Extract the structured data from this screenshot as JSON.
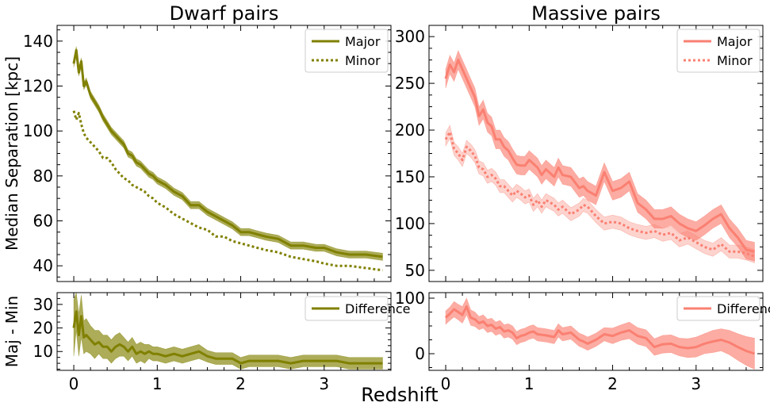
{
  "figure": {
    "xlabel": "Redshift"
  },
  "colors": {
    "dwarf": "#808000",
    "massive": "#fa8072"
  },
  "chart_data": [
    {
      "type": "line",
      "title": "Dwarf pairs",
      "ylabel": "Median Separation [kpc]",
      "xlabel": "",
      "xlim": [
        -0.2,
        3.8
      ],
      "ylim": [
        33,
        147
      ],
      "xticks": [
        0,
        1,
        2,
        3
      ],
      "yticks": [
        40,
        60,
        80,
        100,
        120,
        140
      ],
      "legend": "top-right",
      "grid": false,
      "series": [
        {
          "name": "Major",
          "style": "solid",
          "x": [
            0.0,
            0.03,
            0.06,
            0.09,
            0.12,
            0.15,
            0.2,
            0.25,
            0.3,
            0.35,
            0.4,
            0.45,
            0.5,
            0.55,
            0.6,
            0.65,
            0.7,
            0.75,
            0.8,
            0.85,
            0.9,
            0.95,
            1.0,
            1.1,
            1.2,
            1.3,
            1.4,
            1.5,
            1.6,
            1.7,
            1.8,
            1.9,
            2.0,
            2.1,
            2.2,
            2.3,
            2.45,
            2.6,
            2.75,
            2.9,
            3.0,
            3.15,
            3.3,
            3.5,
            3.7
          ],
          "y": [
            130,
            136,
            126,
            131,
            120,
            122,
            116,
            113,
            110,
            106,
            103,
            100,
            98,
            96,
            94,
            90,
            89,
            86,
            85,
            83,
            81,
            80,
            78,
            76,
            73,
            71,
            67,
            67,
            64,
            62,
            60,
            58,
            55,
            55,
            54,
            53,
            52,
            49,
            49,
            48,
            48,
            46,
            45,
            45,
            44
          ],
          "band": 1.6
        },
        {
          "name": "Minor",
          "style": "dotted",
          "x": [
            0.0,
            0.03,
            0.06,
            0.09,
            0.12,
            0.15,
            0.2,
            0.25,
            0.3,
            0.35,
            0.4,
            0.45,
            0.5,
            0.55,
            0.6,
            0.65,
            0.7,
            0.75,
            0.8,
            0.85,
            0.9,
            0.95,
            1.0,
            1.1,
            1.2,
            1.3,
            1.4,
            1.5,
            1.6,
            1.7,
            1.8,
            1.9,
            2.0,
            2.1,
            2.2,
            2.3,
            2.45,
            2.6,
            2.75,
            2.9,
            3.0,
            3.15,
            3.3,
            3.5,
            3.7
          ],
          "y": [
            109,
            105,
            108,
            103,
            99,
            97,
            95,
            93,
            91,
            88,
            88,
            86,
            83,
            81,
            79,
            78,
            76,
            75,
            74,
            73,
            71,
            70,
            68,
            66,
            63,
            61,
            59,
            57,
            56,
            53,
            53,
            51,
            50,
            49,
            48,
            47,
            46,
            44,
            43,
            42,
            41,
            40,
            40,
            39,
            38
          ]
        }
      ]
    },
    {
      "type": "line",
      "title": "Massive pairs",
      "xlabel": "",
      "ylabel": "",
      "xlim": [
        -0.2,
        3.8
      ],
      "ylim": [
        38,
        312
      ],
      "xticks": [
        0,
        1,
        2,
        3
      ],
      "yticks": [
        50,
        100,
        150,
        200,
        250,
        300
      ],
      "legend": "top-right",
      "grid": false,
      "series": [
        {
          "name": "Major",
          "style": "solid",
          "x": [
            0.0,
            0.05,
            0.1,
            0.15,
            0.2,
            0.25,
            0.3,
            0.35,
            0.4,
            0.45,
            0.5,
            0.55,
            0.6,
            0.65,
            0.7,
            0.75,
            0.8,
            0.85,
            0.9,
            0.95,
            1.0,
            1.05,
            1.1,
            1.15,
            1.2,
            1.3,
            1.35,
            1.4,
            1.5,
            1.6,
            1.65,
            1.7,
            1.8,
            1.9,
            2.0,
            2.1,
            2.2,
            2.3,
            2.4,
            2.5,
            2.6,
            2.7,
            2.8,
            2.9,
            3.0,
            3.1,
            3.2,
            3.3,
            3.4,
            3.5,
            3.6,
            3.7
          ],
          "y": [
            255,
            270,
            262,
            275,
            265,
            255,
            245,
            235,
            215,
            222,
            208,
            204,
            190,
            190,
            182,
            178,
            170,
            163,
            162,
            162,
            168,
            164,
            160,
            152,
            158,
            150,
            160,
            152,
            150,
            138,
            140,
            135,
            130,
            155,
            135,
            138,
            145,
            122,
            115,
            105,
            105,
            108,
            100,
            95,
            92,
            98,
            105,
            110,
            95,
            85,
            72,
            70
          ],
          "band": 10
        },
        {
          "name": "Minor",
          "style": "dotted",
          "x": [
            0.0,
            0.05,
            0.1,
            0.15,
            0.2,
            0.25,
            0.3,
            0.35,
            0.4,
            0.45,
            0.5,
            0.55,
            0.6,
            0.65,
            0.7,
            0.75,
            0.8,
            0.85,
            0.9,
            0.95,
            1.0,
            1.05,
            1.1,
            1.15,
            1.2,
            1.3,
            1.35,
            1.4,
            1.5,
            1.6,
            1.65,
            1.7,
            1.8,
            1.9,
            2.0,
            2.1,
            2.2,
            2.3,
            2.4,
            2.5,
            2.6,
            2.7,
            2.8,
            2.9,
            3.0,
            3.1,
            3.2,
            3.3,
            3.4,
            3.5,
            3.6,
            3.7
          ],
          "y": [
            190,
            198,
            180,
            175,
            168,
            182,
            178,
            172,
            160,
            158,
            150,
            152,
            148,
            140,
            140,
            135,
            130,
            135,
            132,
            128,
            130,
            120,
            125,
            118,
            125,
            120,
            115,
            118,
            110,
            115,
            120,
            118,
            108,
            100,
            102,
            100,
            95,
            92,
            90,
            92,
            88,
            90,
            82,
            85,
            80,
            75,
            72,
            78,
            70,
            70,
            68,
            65
          ],
          "band": 7
        }
      ]
    },
    {
      "type": "line",
      "title": "",
      "ylabel": "Maj - Min",
      "xlabel": "",
      "xlim": [
        -0.2,
        3.8
      ],
      "ylim": [
        2,
        35
      ],
      "xticks": [
        0,
        1,
        2,
        3
      ],
      "xticklabels": [
        "0",
        "1",
        "2",
        "3"
      ],
      "yticks": [
        10,
        20,
        30
      ],
      "legend": "top-right",
      "series": [
        {
          "name": "Difference",
          "style": "solid",
          "x": [
            0.0,
            0.03,
            0.06,
            0.09,
            0.12,
            0.15,
            0.2,
            0.25,
            0.3,
            0.35,
            0.4,
            0.45,
            0.5,
            0.55,
            0.6,
            0.65,
            0.7,
            0.75,
            0.8,
            0.85,
            0.9,
            0.95,
            1.0,
            1.1,
            1.2,
            1.3,
            1.4,
            1.5,
            1.6,
            1.7,
            1.8,
            1.9,
            2.0,
            2.1,
            2.2,
            2.3,
            2.45,
            2.6,
            2.75,
            2.9,
            3.0,
            3.15,
            3.3,
            3.5,
            3.7
          ],
          "y": [
            20,
            27,
            17,
            25,
            16,
            17,
            15,
            13,
            14,
            12,
            12,
            10,
            12,
            13,
            12,
            10,
            12,
            9,
            10,
            9,
            10,
            9,
            9,
            8,
            9,
            8,
            9,
            10,
            8,
            7,
            7,
            7,
            5,
            6,
            6,
            6,
            6,
            5,
            6,
            6,
            6,
            6,
            5,
            5,
            5
          ],
          "band": [
            12,
            8,
            9,
            9,
            7,
            7,
            6,
            6,
            5,
            5,
            5,
            5,
            5,
            5,
            4,
            4,
            4,
            4,
            4,
            4,
            3,
            3,
            3,
            3,
            3,
            3,
            3,
            3,
            2.5,
            2.5,
            2.5,
            2.5,
            2.5,
            2.5,
            2.5,
            2.5,
            2.5,
            2.5,
            2.5,
            2.5,
            2.5,
            2.5,
            2.5,
            2.5,
            2.5
          ]
        }
      ]
    },
    {
      "type": "line",
      "title": "",
      "xlabel": "",
      "ylabel": "",
      "xlim": [
        -0.2,
        3.8
      ],
      "ylim": [
        -30,
        110
      ],
      "xticks": [
        0,
        1,
        2,
        3
      ],
      "xticklabels": [
        "0",
        "1",
        "2",
        "3"
      ],
      "yticks": [
        0,
        100
      ],
      "legend": "top-right",
      "series": [
        {
          "name": "Difference",
          "style": "solid",
          "x": [
            0.0,
            0.05,
            0.1,
            0.15,
            0.2,
            0.25,
            0.3,
            0.35,
            0.4,
            0.45,
            0.5,
            0.55,
            0.6,
            0.65,
            0.7,
            0.75,
            0.8,
            0.85,
            0.9,
            0.95,
            1.0,
            1.05,
            1.1,
            1.15,
            1.2,
            1.3,
            1.35,
            1.4,
            1.5,
            1.6,
            1.65,
            1.7,
            1.8,
            1.9,
            2.0,
            2.1,
            2.2,
            2.3,
            2.4,
            2.5,
            2.6,
            2.7,
            2.8,
            2.9,
            3.0,
            3.1,
            3.2,
            3.3,
            3.4,
            3.5,
            3.6,
            3.7
          ],
          "y": [
            65,
            72,
            80,
            75,
            70,
            85,
            65,
            62,
            55,
            58,
            50,
            52,
            45,
            48,
            40,
            42,
            38,
            28,
            32,
            34,
            38,
            40,
            35,
            34,
            33,
            30,
            42,
            35,
            38,
            25,
            22,
            18,
            25,
            35,
            32,
            38,
            42,
            32,
            28,
            12,
            17,
            18,
            12,
            10,
            12,
            18,
            22,
            25,
            20,
            12,
            5,
            0
          ],
          "band": [
            12,
            12,
            14,
            14,
            15,
            15,
            14,
            13,
            12,
            12,
            12,
            12,
            12,
            12,
            12,
            12,
            12,
            12,
            12,
            12,
            12,
            12,
            12,
            12,
            12,
            12,
            12,
            12,
            12,
            12,
            12,
            12,
            12,
            12,
            14,
            14,
            15,
            15,
            15,
            15,
            16,
            16,
            16,
            17,
            18,
            18,
            20,
            20,
            22,
            24,
            26,
            28
          ]
        }
      ]
    }
  ]
}
